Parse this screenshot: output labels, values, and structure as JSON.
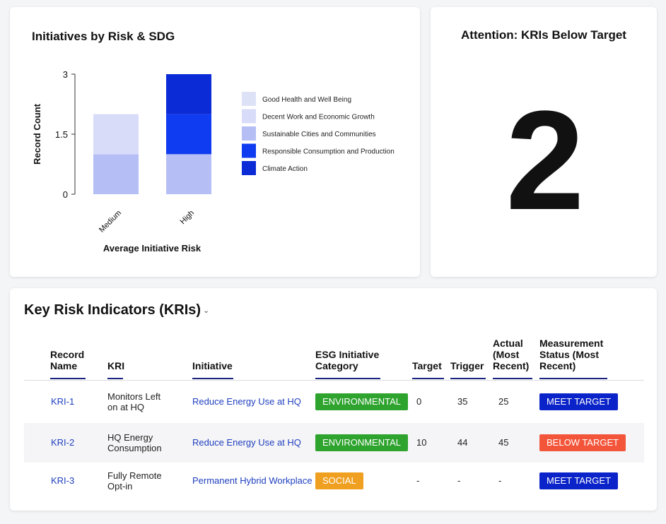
{
  "chart_card": {
    "title": "Initiatives by Risk & SDG"
  },
  "chart_data": {
    "type": "bar",
    "stacked": true,
    "title": "Initiatives by Risk & SDG",
    "xlabel": "Average Initiative Risk",
    "ylabel": "Record Count",
    "categories": [
      "Medium",
      "High"
    ],
    "ylim": [
      0,
      3
    ],
    "yticks": [
      "0",
      "1.5",
      "3"
    ],
    "legend_position": "right",
    "series": [
      {
        "name": "Good Health and Well Being",
        "values": [
          0,
          0
        ],
        "color": "#dde2f7"
      },
      {
        "name": "Decent Work and Economic Growth",
        "values": [
          1,
          0
        ],
        "color": "#d9dcf9"
      },
      {
        "name": "Sustainable Cities and Communities",
        "values": [
          1,
          1
        ],
        "color": "#b6bff5"
      },
      {
        "name": "Responsible Consumption and Production",
        "values": [
          0,
          1
        ],
        "color": "#0f3cf0"
      },
      {
        "name": "Climate Action",
        "values": [
          0,
          1
        ],
        "color": "#0a2bd6"
      }
    ]
  },
  "attention_card": {
    "title": "Attention: KRIs Below Target",
    "value": "2"
  },
  "kri_table": {
    "title": "Key Risk Indicators (KRIs)",
    "dropdown_glyph": "⌄",
    "columns": {
      "record": [
        "Record",
        "Name"
      ],
      "kri": [
        "KRI"
      ],
      "initiative": [
        "Initiative"
      ],
      "category": [
        "ESG Initiative",
        "Category"
      ],
      "target": [
        "Target"
      ],
      "trigger": [
        "Trigger"
      ],
      "actual": [
        "Actual",
        "(Most",
        "Recent)"
      ],
      "status": [
        "Measurement",
        "Status (Most",
        "Recent)"
      ]
    },
    "rows": [
      {
        "record": "KRI-1",
        "kri": [
          "Monitors Left",
          "on at HQ"
        ],
        "initiative": "Reduce Energy Use at HQ",
        "category": "ENVIRONMENTAL",
        "category_type": "env",
        "target": "0",
        "trigger": "35",
        "actual": "25",
        "status": "MEET TARGET",
        "status_color": "#0b24c9"
      },
      {
        "record": "KRI-2",
        "kri": [
          "HQ Energy",
          "Consumption"
        ],
        "initiative": "Reduce Energy Use at HQ",
        "category": "ENVIRONMENTAL",
        "category_type": "env",
        "target": "10",
        "trigger": "44",
        "actual": "45",
        "status": "BELOW TARGET",
        "status_color": "#f3553a"
      },
      {
        "record": "KRI-3",
        "kri": [
          "Fully Remote",
          "Opt-in"
        ],
        "initiative": "Permanent Hybrid Workplace",
        "category": "SOCIAL",
        "category_type": "social",
        "target": "-",
        "trigger": "-",
        "actual": "-",
        "status": "MEET TARGET",
        "status_color": "#0b24c9"
      }
    ]
  }
}
